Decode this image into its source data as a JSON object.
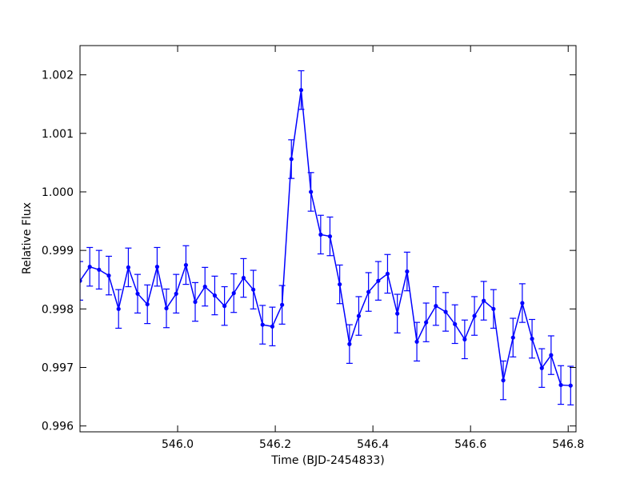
{
  "chart_data": {
    "type": "errorbar-line",
    "xlabel": "Time (BJD-2454833)",
    "ylabel": "Relative Flux",
    "color": "#0000ff",
    "x": [
      545.8,
      545.82,
      545.839,
      545.859,
      545.879,
      545.899,
      545.918,
      545.938,
      545.958,
      545.977,
      545.997,
      546.017,
      546.036,
      546.056,
      546.076,
      546.096,
      546.115,
      546.135,
      546.155,
      546.174,
      546.194,
      546.214,
      546.233,
      546.253,
      546.273,
      546.293,
      546.312,
      546.332,
      546.352,
      546.371,
      546.391,
      546.411,
      546.43,
      546.45,
      546.47,
      546.49,
      546.509,
      546.529,
      546.549,
      546.568,
      546.588,
      546.608,
      546.627,
      546.647,
      546.667,
      546.687,
      546.706,
      546.726,
      546.746,
      546.765,
      546.785,
      546.805
    ],
    "values": [
      0.99848,
      0.99872,
      0.99867,
      0.99857,
      0.998,
      0.99871,
      0.99826,
      0.99808,
      0.99872,
      0.99801,
      0.99826,
      0.99875,
      0.99812,
      0.99838,
      0.99823,
      0.99805,
      0.99827,
      0.99853,
      0.99833,
      0.99773,
      0.9977,
      0.99807,
      1.00056,
      1.00174,
      1.0,
      0.99927,
      0.99924,
      0.99842,
      0.9974,
      0.99788,
      0.99829,
      0.99848,
      0.9986,
      0.99792,
      0.99864,
      0.99744,
      0.99777,
      0.99805,
      0.99795,
      0.99774,
      0.99748,
      0.99788,
      0.99814,
      0.998,
      0.99678,
      0.99751,
      0.9981,
      0.99749,
      0.99699,
      0.99721,
      0.9967,
      0.99669
    ],
    "errors": [
      0.00033,
      0.00033,
      0.00033,
      0.00033,
      0.00033,
      0.00033,
      0.00033,
      0.00033,
      0.00033,
      0.00033,
      0.00033,
      0.00033,
      0.00033,
      0.00033,
      0.00033,
      0.00033,
      0.00033,
      0.00033,
      0.00033,
      0.00033,
      0.00033,
      0.00033,
      0.00033,
      0.00033,
      0.00033,
      0.00033,
      0.00033,
      0.00033,
      0.00033,
      0.00033,
      0.00033,
      0.00033,
      0.00033,
      0.00033,
      0.00033,
      0.00033,
      0.00033,
      0.00033,
      0.00033,
      0.00033,
      0.00033,
      0.00033,
      0.00033,
      0.00033,
      0.00033,
      0.00033,
      0.00033,
      0.00033,
      0.00033,
      0.00033,
      0.00033,
      0.00033
    ],
    "xlim": [
      545.8,
      546.816
    ],
    "ylim": [
      0.9959,
      1.0025
    ],
    "xticks": [
      {
        "value": 546.0,
        "label": "546.0"
      },
      {
        "value": 546.2,
        "label": "546.2"
      },
      {
        "value": 546.4,
        "label": "546.4"
      },
      {
        "value": 546.6,
        "label": "546.6"
      },
      {
        "value": 546.8,
        "label": "546.8"
      }
    ],
    "yticks": [
      0.996,
      0.997,
      0.998,
      0.999,
      {
        "value": 1.0,
        "label": "1.000"
      },
      1.001,
      1.002
    ]
  }
}
